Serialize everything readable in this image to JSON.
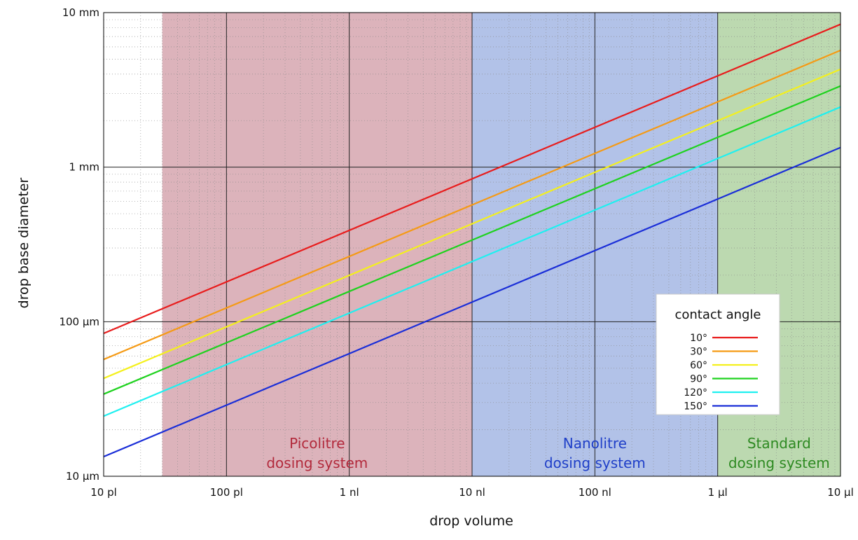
{
  "chart_data": {
    "type": "line",
    "xlabel": "drop volume",
    "ylabel": "drop base diameter",
    "x_scale": "log",
    "y_scale": "log",
    "xlim": [
      "10 pl",
      "10 µl"
    ],
    "ylim": [
      "10 µm",
      "10 mm"
    ],
    "x_ticks": [
      {
        "value_nl": 0.01,
        "label": "10 pl"
      },
      {
        "value_nl": 0.1,
        "label": "100 pl"
      },
      {
        "value_nl": 1,
        "label": "1 nl"
      },
      {
        "value_nl": 10,
        "label": "10 nl"
      },
      {
        "value_nl": 100,
        "label": "100 nl"
      },
      {
        "value_nl": 1000,
        "label": "1 µl"
      },
      {
        "value_nl": 10000,
        "label": "10 µl"
      }
    ],
    "y_ticks": [
      {
        "value_mm": 0.01,
        "label": "10 µm"
      },
      {
        "value_mm": 0.1,
        "label": "100 µm"
      },
      {
        "value_mm": 1,
        "label": "1 mm"
      },
      {
        "value_mm": 10,
        "label": "10 mm"
      }
    ],
    "grid": true,
    "regions": [
      {
        "label_lines": [
          "Picolitre",
          "dosing system"
        ],
        "from_nl": 0.03,
        "to_nl": 10,
        "color": "#dcb3bb",
        "text_color": "#b22a3c"
      },
      {
        "label_lines": [
          "Nanolitre",
          "dosing system"
        ],
        "from_nl": 10,
        "to_nl": 1000,
        "color": "#b2c2e8",
        "text_color": "#1f3fc8"
      },
      {
        "label_lines": [
          "Standard",
          "dosing system"
        ],
        "from_nl": 1000,
        "to_nl": 10000,
        "color": "#bcd9b0",
        "text_color": "#2e8a22"
      }
    ],
    "legend": {
      "title": "contact angle",
      "placement": "lower-right"
    },
    "series": [
      {
        "name": "10°",
        "color": "#e81c1c",
        "x_nl": [
          0.01,
          10000
        ],
        "y_mm": [
          0.084,
          8.4
        ]
      },
      {
        "name": "30°",
        "color": "#f59a14",
        "x_nl": [
          0.01,
          10000
        ],
        "y_mm": [
          0.057,
          5.7
        ]
      },
      {
        "name": "60°",
        "color": "#f4f01c",
        "x_nl": [
          0.01,
          10000
        ],
        "y_mm": [
          0.043,
          4.3
        ]
      },
      {
        "name": "90°",
        "color": "#1ed21e",
        "x_nl": [
          0.01,
          10000
        ],
        "y_mm": [
          0.034,
          3.35
        ]
      },
      {
        "name": "120°",
        "color": "#1ef0f0",
        "x_nl": [
          0.01,
          10000
        ],
        "y_mm": [
          0.0245,
          2.45
        ]
      },
      {
        "name": "150°",
        "color": "#1a2ed8",
        "x_nl": [
          0.01,
          10000
        ],
        "y_mm": [
          0.0134,
          1.34
        ]
      }
    ]
  }
}
